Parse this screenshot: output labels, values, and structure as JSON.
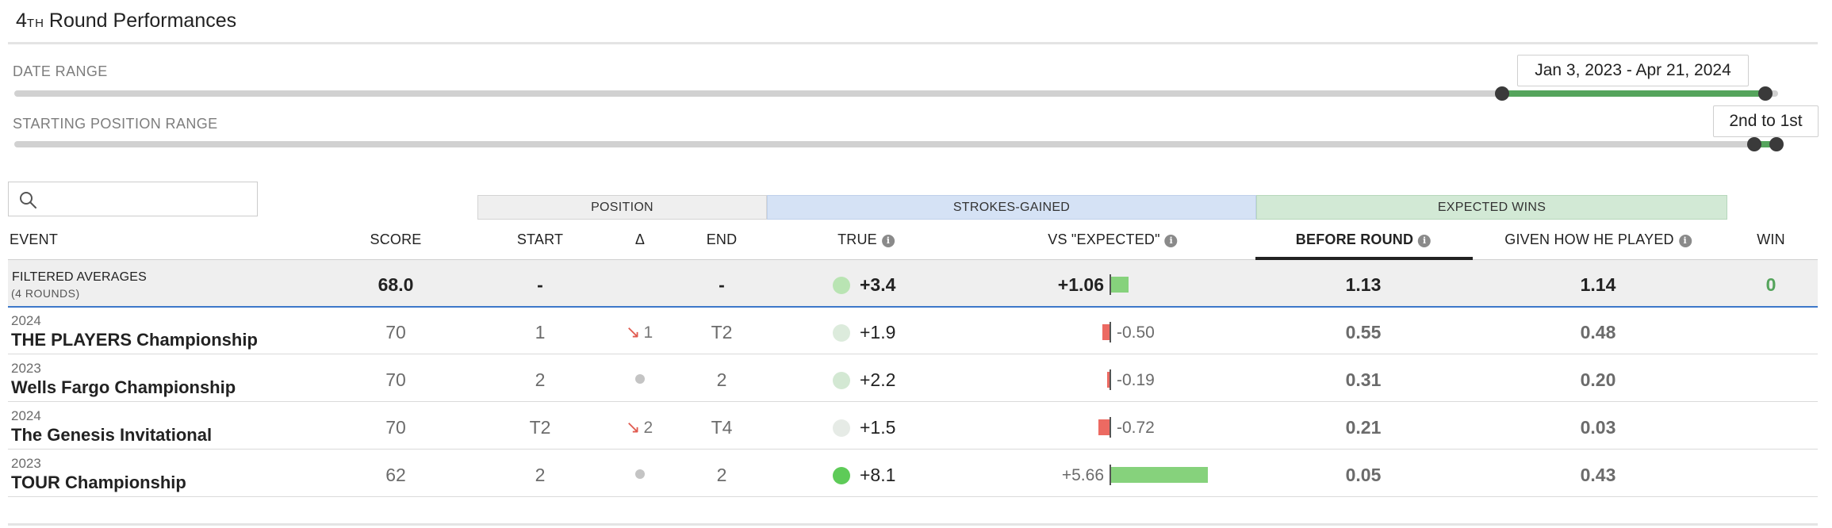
{
  "page": {
    "title_num": "4",
    "title_sup": "TH",
    "title_rest": "Round Performances"
  },
  "filters": {
    "date_range_label": "DATE RANGE",
    "date_range_value": "Jan 3, 2023 - Apr 21, 2024",
    "starting_position_label": "STARTING POSITION RANGE",
    "starting_position_value": "2nd to 1st"
  },
  "search": {
    "placeholder": "",
    "value": "",
    "icon": "search-icon"
  },
  "groups": {
    "position": "POSITION",
    "strokes_gained": "STROKES-GAINED",
    "expected_wins": "EXPECTED WINS"
  },
  "columns": {
    "event": "EVENT",
    "score": "SCORE",
    "start": "START",
    "delta": "Δ",
    "end": "END",
    "true": "TRUE",
    "vs_expected": "VS \"EXPECTED\"",
    "before_round": "BEFORE ROUND",
    "given_how_he_played": "GIVEN HOW HE PLAYED",
    "win": "WIN",
    "info_glyph": "i"
  },
  "averages": {
    "label": "FILTERED AVERAGES",
    "sublabel": "(4 ROUNDS)",
    "score": "68.0",
    "start": "-",
    "end": "-",
    "true_sg": "+3.4",
    "vs_expected": "+1.06",
    "before_round": "1.13",
    "given_how_he_played": "1.14",
    "win": "0"
  },
  "rows": [
    {
      "year": "2024",
      "event": "THE PLAYERS Championship",
      "score": "70",
      "start": "1",
      "delta_arrow": "↘",
      "delta": "1",
      "end": "T2",
      "true_sg": "+1.9",
      "vs_expected": "-0.50",
      "before_round": "0.55",
      "given_how_he_played": "0.48",
      "win": ""
    },
    {
      "year": "2023",
      "event": "Wells Fargo Championship",
      "score": "70",
      "start": "2",
      "delta_arrow": "",
      "delta": "",
      "end": "2",
      "true_sg": "+2.2",
      "vs_expected": "-0.19",
      "before_round": "0.31",
      "given_how_he_played": "0.20",
      "win": ""
    },
    {
      "year": "2024",
      "event": "The Genesis Invitational",
      "score": "70",
      "start": "T2",
      "delta_arrow": "↘",
      "delta": "2",
      "end": "T4",
      "true_sg": "+1.5",
      "vs_expected": "-0.72",
      "before_round": "0.21",
      "given_how_he_played": "0.03",
      "win": ""
    },
    {
      "year": "2023",
      "event": "TOUR Championship",
      "score": "62",
      "start": "2",
      "delta_arrow": "",
      "delta": "",
      "end": "2",
      "true_sg": "+8.1",
      "vs_expected": "+5.66",
      "before_round": "0.05",
      "given_how_he_played": "0.43",
      "win": ""
    }
  ],
  "colors": {
    "range_fill": "#55a45c",
    "positive_bar": "#86d27c",
    "negative_bar": "#ec6a62",
    "delta_arrow": "#e05a4f",
    "win_value": "#55a45c",
    "sort_indicator": "#222222"
  }
}
